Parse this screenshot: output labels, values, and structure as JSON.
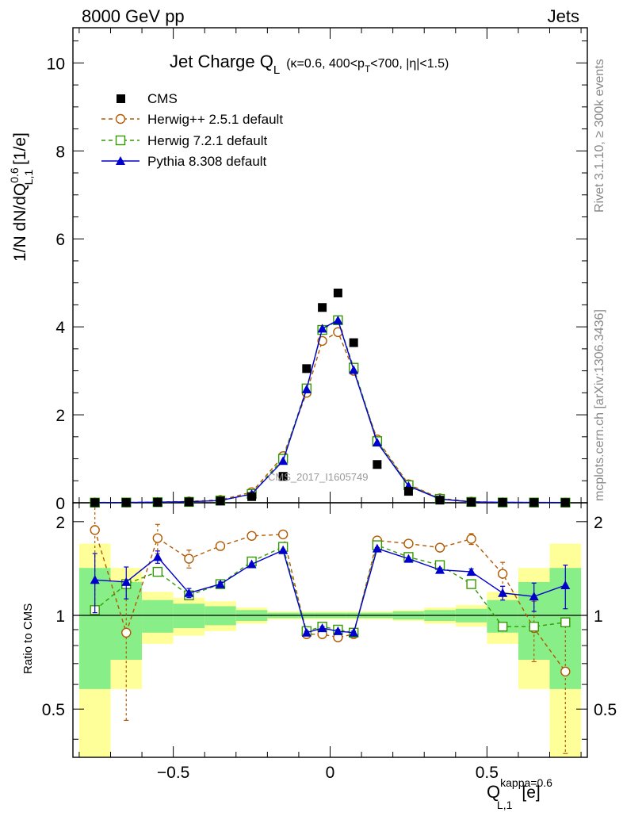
{
  "header": {
    "left": "8000 GeV pp",
    "right": "Jets"
  },
  "side": {
    "rivet": "Rivet 3.1.10, ≥ 300k events",
    "mcplots": "mcplots.cern.ch [arXiv:1306.3436]"
  },
  "chart_data": {
    "type": "line",
    "title_main": "Jet Charge Q",
    "title_sub": "L",
    "title_extra": "(κ=0.6, 400<p",
    "title_extra2": "T",
    "title_extra3": "<700, |η|<1.5)",
    "ylabel": "1/N dN/dQ",
    "ylabel_sup": "0.6",
    "ylabel_sub": "L,1",
    "ylabel_unit": " [1/e]",
    "ratio_ylabel": "Ratio to CMS",
    "xlabel": "Q",
    "xlabel_sub": "L,1",
    "xlabel_sup": "kappa=0.6",
    "xlabel_unit": "[e]",
    "xlim": [
      -0.82,
      0.82
    ],
    "ylim": [
      0,
      10.8
    ],
    "ratio_ylim": [
      0.35,
      2.3
    ],
    "x_ticks": [
      "−0.5",
      "0",
      "0.5"
    ],
    "x_tick_values": [
      -0.5,
      0,
      0.5
    ],
    "y_ticks": [
      "0",
      "2",
      "4",
      "6",
      "8",
      "10"
    ],
    "y_tick_values": [
      0,
      2,
      4,
      6,
      8,
      10
    ],
    "ratio_ticks": [
      "0.5",
      "1",
      "2"
    ],
    "ratio_tick_values": [
      0.5,
      1,
      2
    ],
    "watermark": "CMS_2017_I1605749",
    "x": [
      -0.75,
      -0.65,
      -0.55,
      -0.45,
      -0.35,
      -0.25,
      -0.15,
      -0.075,
      -0.025,
      0.025,
      0.075,
      0.15,
      0.25,
      0.35,
      0.45,
      0.55,
      0.65,
      0.75
    ],
    "bin_edges": [
      -0.8,
      -0.7,
      -0.6,
      -0.5,
      -0.4,
      -0.3,
      -0.2,
      -0.1,
      -0.05,
      0.0,
      0.05,
      0.1,
      0.2,
      0.3,
      0.4,
      0.5,
      0.6,
      0.7,
      0.8
    ],
    "band_green": [
      0.42,
      0.28,
      0.12,
      0.09,
      0.07,
      0.04,
      0.02,
      0.02,
      0.02,
      0.02,
      0.02,
      0.02,
      0.03,
      0.04,
      0.05,
      0.12,
      0.28,
      0.42
    ],
    "band_yellow": [
      0.7,
      0.42,
      0.19,
      0.14,
      0.11,
      0.06,
      0.03,
      0.03,
      0.03,
      0.03,
      0.03,
      0.03,
      0.04,
      0.06,
      0.08,
      0.19,
      0.42,
      0.7
    ],
    "series": [
      {
        "name": "CMS",
        "color": "#000000",
        "marker": "square",
        "values": [
          0.004,
          0.006,
          0.01,
          0.02,
          0.04,
          0.14,
          0.6,
          3.05,
          4.44,
          4.77,
          3.64,
          0.87,
          0.26,
          0.06,
          0.015,
          0.008,
          0.006,
          0.004
        ],
        "ratio": []
      },
      {
        "name": "Herwig++ 2.5.1 default",
        "color": "#b35900",
        "marker": "circle",
        "dash": "5,4",
        "values": [
          0.007,
          0.005,
          0.017,
          0.03,
          0.065,
          0.24,
          1.06,
          2.5,
          3.68,
          3.88,
          3.0,
          1.44,
          0.42,
          0.1,
          0.026,
          0.011,
          0.006,
          0.003
        ],
        "ratio": [
          1.88,
          0.88,
          1.77,
          1.52,
          1.67,
          1.8,
          1.82,
          0.87,
          0.87,
          0.85,
          0.87,
          1.74,
          1.7,
          1.65,
          1.76,
          1.36,
          0.91,
          0.66
        ],
        "ratio_err": [
          0.85,
          0.42,
          0.19,
          0.1,
          0.05,
          0.03,
          0.02,
          0.01,
          0.01,
          0.01,
          0.01,
          0.02,
          0.03,
          0.04,
          0.07,
          0.12,
          0.2,
          0.3
        ]
      },
      {
        "name": "Herwig 7.2.1 default",
        "color": "#339900",
        "marker": "open-square",
        "dash": "5,4",
        "values": [
          0.004,
          0.006,
          0.014,
          0.02,
          0.05,
          0.2,
          1.0,
          2.6,
          3.93,
          4.15,
          3.07,
          1.4,
          0.4,
          0.088,
          0.019,
          0.007,
          0.005,
          0.004
        ],
        "ratio": [
          1.04,
          1.26,
          1.38,
          1.16,
          1.26,
          1.49,
          1.66,
          0.89,
          0.92,
          0.9,
          0.88,
          1.68,
          1.54,
          1.45,
          1.26,
          0.92,
          0.92,
          0.95
        ],
        "ratio_err": [
          0.0,
          0.0,
          0.0,
          0.0,
          0.0,
          0.0,
          0.0,
          0.0,
          0.0,
          0.0,
          0.0,
          0.0,
          0.0,
          0.0,
          0.0,
          0.0,
          0.0,
          0.0
        ]
      },
      {
        "name": "Pythia 8.308 default",
        "color": "#0000cc",
        "marker": "triangle",
        "dash": "",
        "values": [
          0.005,
          0.006,
          0.015,
          0.023,
          0.05,
          0.2,
          0.95,
          2.58,
          3.96,
          4.15,
          3.02,
          1.37,
          0.38,
          0.085,
          0.02,
          0.01,
          0.007,
          0.005
        ],
        "ratio": [
          1.3,
          1.28,
          1.54,
          1.18,
          1.26,
          1.46,
          1.62,
          0.88,
          0.91,
          0.89,
          0.88,
          1.64,
          1.52,
          1.4,
          1.38,
          1.18,
          1.15,
          1.25
        ],
        "ratio_err": [
          0.28,
          0.15,
          0.07,
          0.04,
          0.02,
          0.01,
          0.01,
          0.01,
          0.01,
          0.01,
          0.01,
          0.01,
          0.01,
          0.02,
          0.03,
          0.06,
          0.12,
          0.2
        ]
      }
    ]
  }
}
